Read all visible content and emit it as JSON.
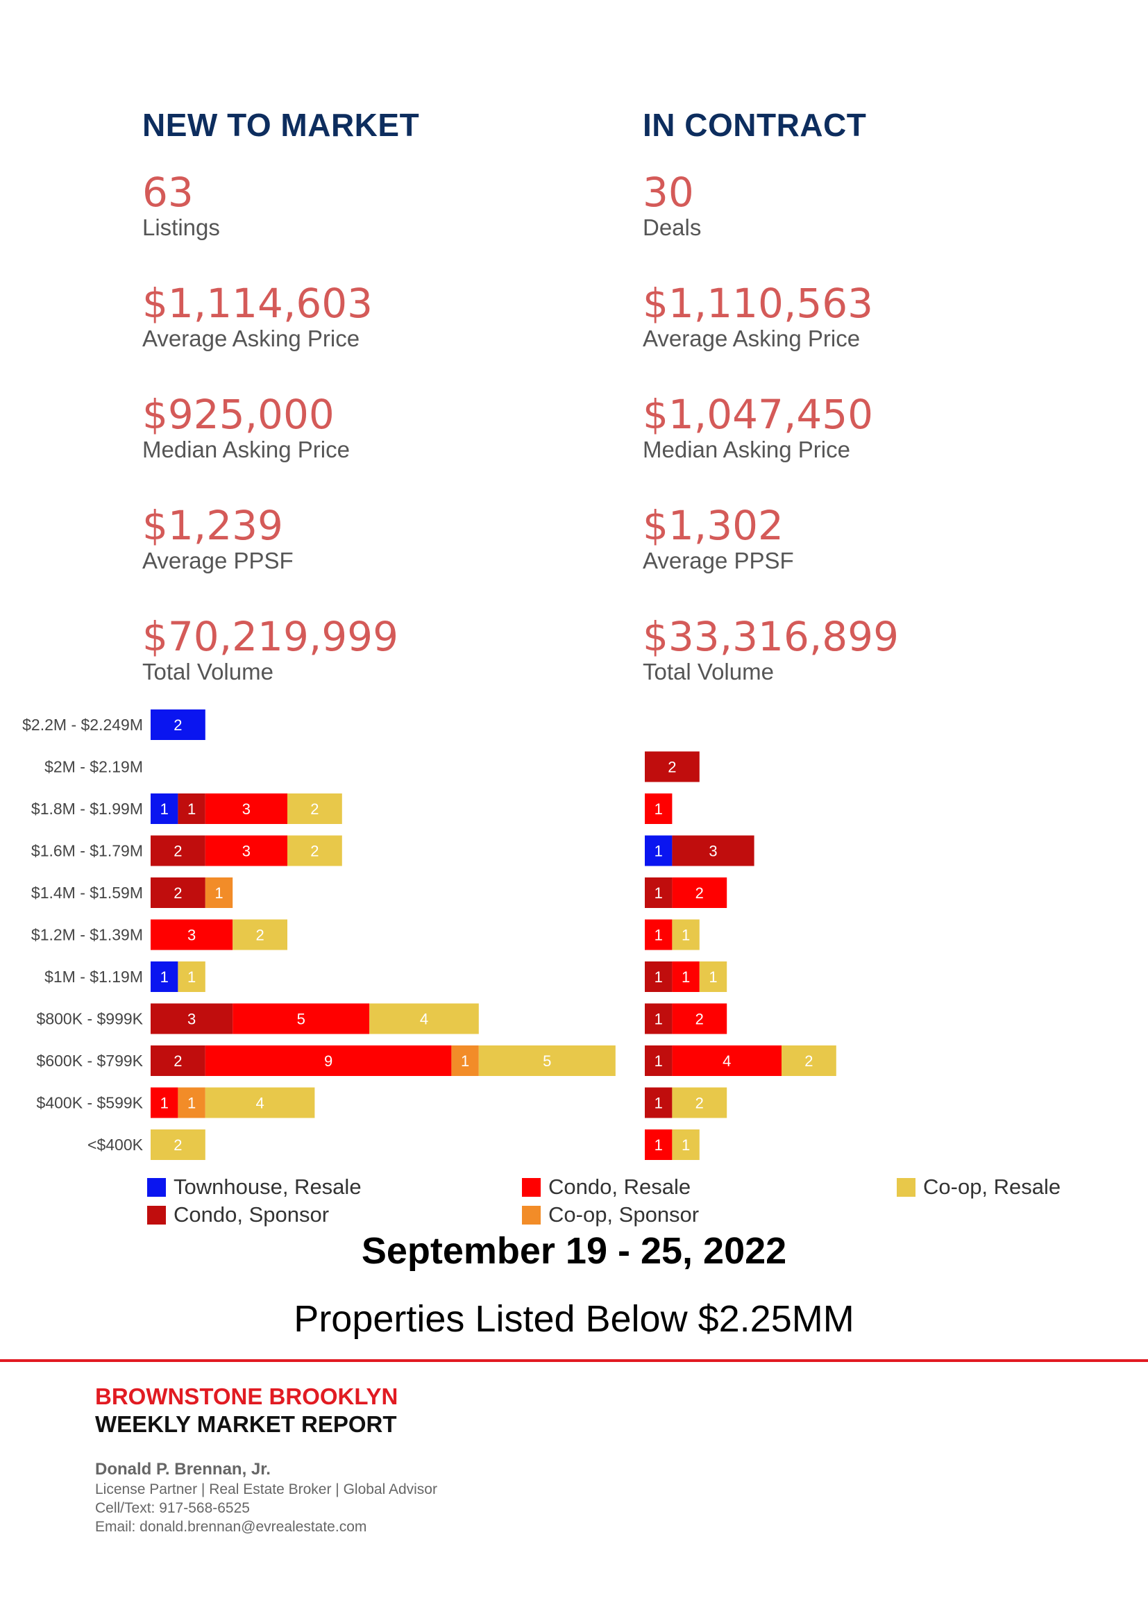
{
  "new_to_market": {
    "title": "NEW TO MARKET",
    "stats": [
      {
        "value": "63",
        "label": "Listings"
      },
      {
        "value": "$1,114,603",
        "label": "Average Asking Price"
      },
      {
        "value": "$925,000",
        "label": "Median Asking Price"
      },
      {
        "value": "$1,239",
        "label": "Average PPSF"
      },
      {
        "value": "$70,219,999",
        "label": "Total Volume"
      }
    ]
  },
  "in_contract": {
    "title": "IN CONTRACT",
    "stats": [
      {
        "value": "30",
        "label": "Deals"
      },
      {
        "value": "$1,110,563",
        "label": "Average Asking Price"
      },
      {
        "value": "$1,047,450",
        "label": "Median Asking Price"
      },
      {
        "value": "$1,302",
        "label": "Average PPSF"
      },
      {
        "value": "$33,316,899",
        "label": "Total Volume"
      }
    ]
  },
  "chart_data": {
    "type": "bar",
    "orientation": "horizontal",
    "stacked": true,
    "categories": [
      "$2.2M - $2.249M",
      "$2M - $2.19M",
      "$1.8M - $1.99M",
      "$1.6M - $1.79M",
      "$1.4M - $1.59M",
      "$1.2M - $1.39M",
      "$1M - $1.19M",
      "$800K - $999K",
      "$600K - $799K",
      "$400K - $599K",
      "<$400K"
    ],
    "series_order": [
      "Townhouse, Resale",
      "Condo, Sponsor",
      "Condo, Resale",
      "Co-op, Sponsor",
      "Co-op, Resale"
    ],
    "colors": {
      "Townhouse, Resale": "#0a15f0",
      "Condo, Sponsor": "#c00d0d",
      "Condo, Resale": "#ff0000",
      "Co-op, Sponsor": "#f28c28",
      "Co-op, Resale": "#e8c84a"
    },
    "panels": [
      {
        "name": "New to Market",
        "series": [
          {
            "name": "Townhouse, Resale",
            "values": [
              2,
              0,
              1,
              0,
              0,
              0,
              1,
              0,
              0,
              0,
              0
            ]
          },
          {
            "name": "Condo, Sponsor",
            "values": [
              0,
              0,
              1,
              2,
              2,
              0,
              0,
              3,
              2,
              0,
              0
            ]
          },
          {
            "name": "Condo, Resale",
            "values": [
              0,
              0,
              3,
              3,
              0,
              3,
              0,
              5,
              9,
              1,
              0
            ]
          },
          {
            "name": "Co-op, Sponsor",
            "values": [
              0,
              0,
              0,
              0,
              1,
              0,
              0,
              0,
              1,
              1,
              0
            ]
          },
          {
            "name": "Co-op, Resale",
            "values": [
              0,
              0,
              2,
              2,
              0,
              2,
              1,
              4,
              5,
              4,
              2
            ]
          }
        ]
      },
      {
        "name": "In Contract",
        "series": [
          {
            "name": "Townhouse, Resale",
            "values": [
              0,
              0,
              0,
              1,
              0,
              0,
              0,
              0,
              0,
              0,
              0
            ]
          },
          {
            "name": "Condo, Sponsor",
            "values": [
              0,
              2,
              0,
              3,
              1,
              0,
              1,
              1,
              1,
              1,
              0
            ]
          },
          {
            "name": "Condo, Resale",
            "values": [
              0,
              0,
              1,
              0,
              2,
              1,
              1,
              2,
              4,
              0,
              1
            ]
          },
          {
            "name": "Co-op, Sponsor",
            "values": [
              0,
              0,
              0,
              0,
              0,
              0,
              0,
              0,
              0,
              0,
              0
            ]
          },
          {
            "name": "Co-op, Resale",
            "values": [
              0,
              0,
              0,
              0,
              0,
              1,
              1,
              0,
              2,
              2,
              1
            ]
          }
        ]
      }
    ],
    "legend": {
      "placement": "bottom",
      "rows": [
        [
          "Townhouse, Resale",
          "Condo, Resale",
          "Co-op, Resale"
        ],
        [
          "Condo, Sponsor",
          "Co-op, Sponsor"
        ]
      ]
    },
    "value_labels": true,
    "grid": false
  },
  "report": {
    "date_title": "September 19 - 25, 2022",
    "subtitle": "Properties Listed Below $2.25MM"
  },
  "footer": {
    "brand_line1": "BROWNSTONE BROOKLYN",
    "brand_line2": "WEEKLY MARKET REPORT",
    "agent_name": "Donald P. Brennan, Jr.",
    "agent_title": "License Partner | Real Estate Broker | Global Advisor",
    "phone": "Cell/Text: 917-568-6525",
    "email": "Email: donald.brennan@evrealestate.com"
  }
}
